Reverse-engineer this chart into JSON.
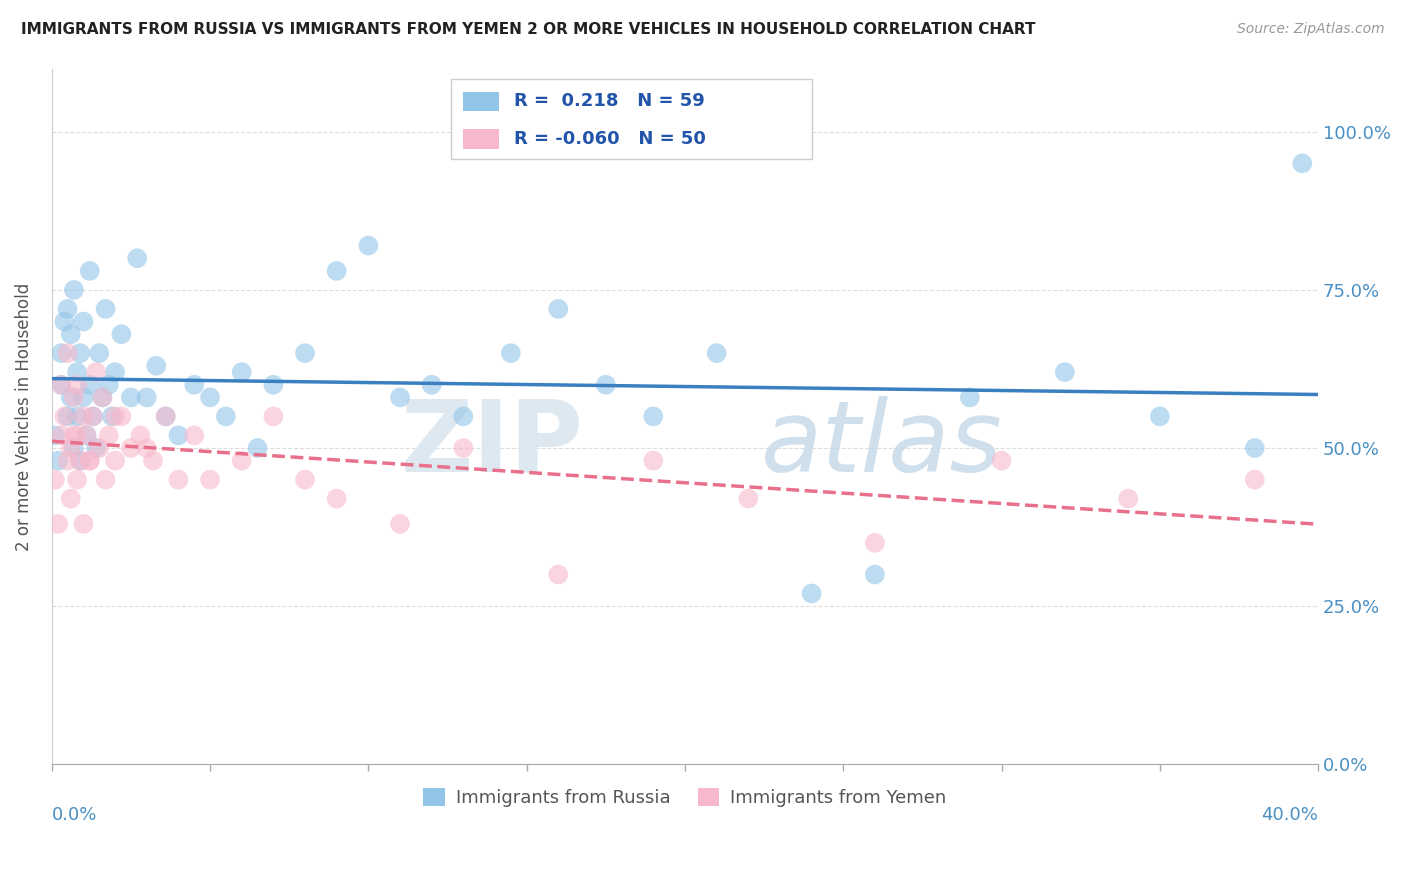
{
  "title": "IMMIGRANTS FROM RUSSIA VS IMMIGRANTS FROM YEMEN 2 OR MORE VEHICLES IN HOUSEHOLD CORRELATION CHART",
  "source": "Source: ZipAtlas.com",
  "ylabel": "2 or more Vehicles in Household",
  "legend_russia": "Immigrants from Russia",
  "legend_yemen": "Immigrants from Yemen",
  "R_russia": 0.218,
  "N_russia": 59,
  "R_yemen": -0.06,
  "N_yemen": 50,
  "color_russia": "#92C5E8",
  "color_yemen": "#F7B8CB",
  "color_russia_line": "#3A7FBF",
  "color_yemen_line": "#E8708A",
  "xlim": [
    0.0,
    0.4
  ],
  "ylim": [
    0.0,
    1.1
  ],
  "russia_x": [
    0.001,
    0.002,
    0.003,
    0.003,
    0.004,
    0.005,
    0.005,
    0.006,
    0.006,
    0.007,
    0.007,
    0.008,
    0.008,
    0.009,
    0.009,
    0.01,
    0.01,
    0.011,
    0.012,
    0.012,
    0.013,
    0.014,
    0.015,
    0.016,
    0.017,
    0.018,
    0.019,
    0.02,
    0.022,
    0.025,
    0.027,
    0.03,
    0.033,
    0.036,
    0.04,
    0.045,
    0.05,
    0.055,
    0.06,
    0.065,
    0.07,
    0.08,
    0.09,
    0.1,
    0.11,
    0.12,
    0.13,
    0.145,
    0.16,
    0.175,
    0.19,
    0.21,
    0.24,
    0.26,
    0.29,
    0.32,
    0.35,
    0.38,
    0.395
  ],
  "russia_y": [
    0.52,
    0.48,
    0.6,
    0.65,
    0.7,
    0.55,
    0.72,
    0.68,
    0.58,
    0.75,
    0.5,
    0.62,
    0.55,
    0.48,
    0.65,
    0.58,
    0.7,
    0.52,
    0.6,
    0.78,
    0.55,
    0.5,
    0.65,
    0.58,
    0.72,
    0.6,
    0.55,
    0.62,
    0.68,
    0.58,
    0.8,
    0.58,
    0.63,
    0.55,
    0.52,
    0.6,
    0.58,
    0.55,
    0.62,
    0.5,
    0.6,
    0.65,
    0.78,
    0.82,
    0.58,
    0.6,
    0.55,
    0.65,
    0.72,
    0.6,
    0.55,
    0.65,
    0.27,
    0.3,
    0.58,
    0.62,
    0.55,
    0.5,
    0.95
  ],
  "yemen_x": [
    0.001,
    0.002,
    0.003,
    0.003,
    0.004,
    0.005,
    0.005,
    0.006,
    0.006,
    0.007,
    0.007,
    0.008,
    0.008,
    0.009,
    0.01,
    0.01,
    0.011,
    0.012,
    0.013,
    0.014,
    0.015,
    0.016,
    0.017,
    0.018,
    0.02,
    0.022,
    0.025,
    0.028,
    0.032,
    0.036,
    0.04,
    0.045,
    0.05,
    0.06,
    0.07,
    0.08,
    0.09,
    0.11,
    0.13,
    0.16,
    0.19,
    0.22,
    0.26,
    0.3,
    0.34,
    0.38,
    0.008,
    0.012,
    0.02,
    0.03
  ],
  "yemen_y": [
    0.45,
    0.38,
    0.52,
    0.6,
    0.55,
    0.48,
    0.65,
    0.5,
    0.42,
    0.58,
    0.52,
    0.45,
    0.6,
    0.48,
    0.55,
    0.38,
    0.52,
    0.48,
    0.55,
    0.62,
    0.5,
    0.58,
    0.45,
    0.52,
    0.48,
    0.55,
    0.5,
    0.52,
    0.48,
    0.55,
    0.45,
    0.52,
    0.45,
    0.48,
    0.55,
    0.45,
    0.42,
    0.38,
    0.5,
    0.3,
    0.48,
    0.42,
    0.35,
    0.48,
    0.42,
    0.45,
    0.52,
    0.48,
    0.55,
    0.5
  ]
}
